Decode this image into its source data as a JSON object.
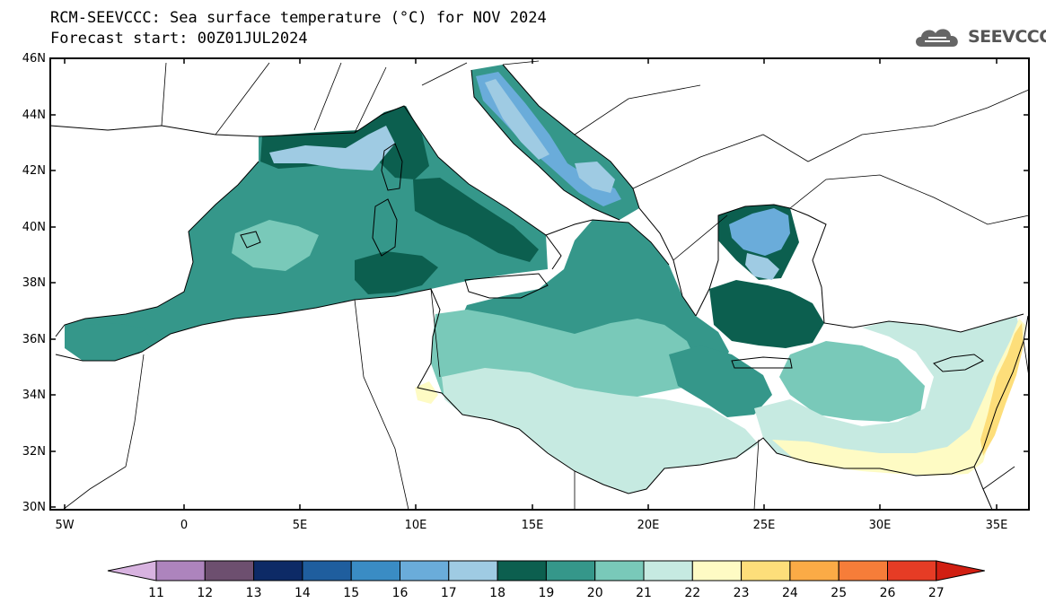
{
  "title": {
    "line1": "RCM-SEEVCCC: Sea surface temperature (°C) for NOV 2024",
    "line2": "Forecast start: 00Z01JUL2024"
  },
  "logo": {
    "text": "SEEVCCC",
    "icon": "cloud-icon"
  },
  "map": {
    "variable": "Sea surface temperature",
    "units": "°C",
    "lon_range": [
      -5.6,
      36.5
    ],
    "lat_range": [
      30,
      46
    ],
    "lat_ticks": [
      "30N",
      "32N",
      "34N",
      "36N",
      "38N",
      "40N",
      "42N",
      "44N",
      "46N"
    ],
    "lon_ticks": [
      "5W",
      "0",
      "5E",
      "10E",
      "15E",
      "20E",
      "25E",
      "30E",
      "35E"
    ]
  },
  "colorbar": {
    "labels": [
      "11",
      "12",
      "13",
      "14",
      "15",
      "16",
      "17",
      "18",
      "19",
      "20",
      "21",
      "22",
      "23",
      "24",
      "25",
      "26",
      "27"
    ],
    "colors": [
      "#d8b3e0",
      "#ad84bd",
      "#6d4f6f",
      "#0d2a66",
      "#1f5e9e",
      "#3a8cc4",
      "#6aacda",
      "#9fcbe3",
      "#0c5f4f",
      "#35978a",
      "#79c9b9",
      "#c6eae1",
      "#fefbc4",
      "#fdde7a",
      "#fbab46",
      "#f67d39",
      "#e63c25",
      "#d11f12"
    ]
  }
}
